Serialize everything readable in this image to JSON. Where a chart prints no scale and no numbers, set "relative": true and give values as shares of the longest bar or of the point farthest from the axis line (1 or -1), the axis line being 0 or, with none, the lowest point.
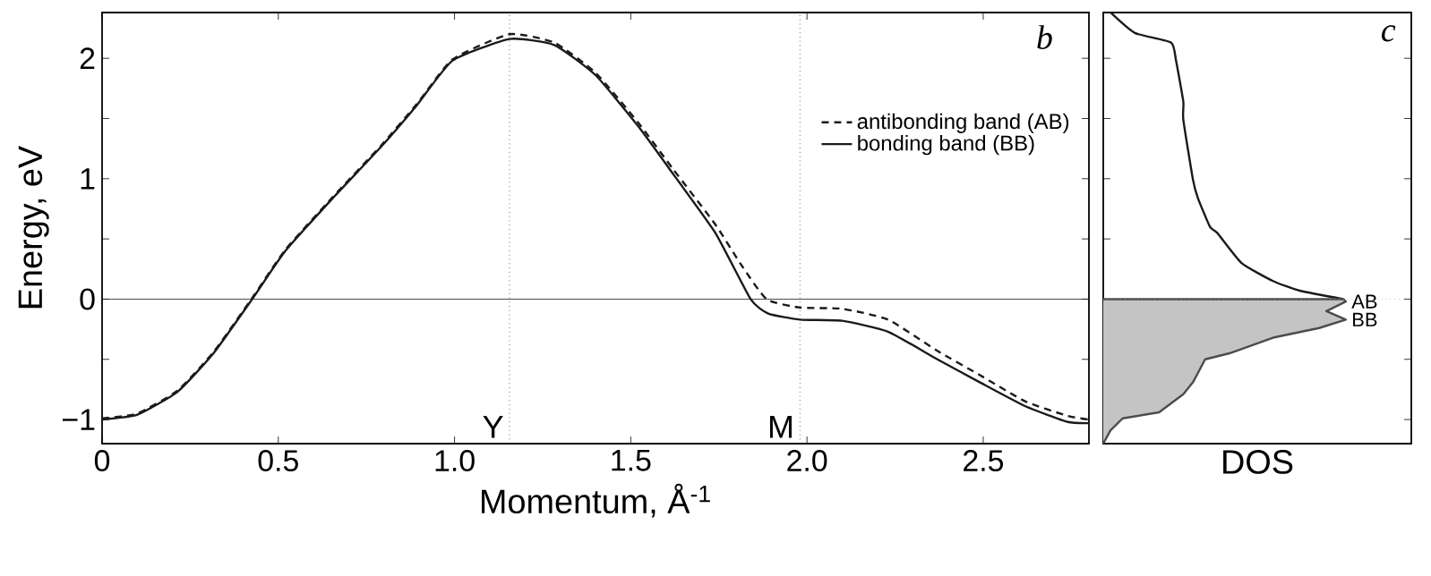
{
  "chart_data": [
    {
      "type": "line",
      "annotations": [
        "b"
      ],
      "xlabel": "Momentum, Å$^{-1}$",
      "ylabel": "Energy, eV",
      "xlim": [
        0,
        2.8
      ],
      "ylim": [
        -1.2,
        2.38
      ],
      "xticks": [
        0,
        0.5,
        {
          "value": 1,
          "label": "1.0"
        },
        1.5,
        {
          "value": 2,
          "label": "2.0"
        },
        2.5
      ],
      "yticks": [
        {
          "value": -1,
          "label": "−1"
        },
        {
          "value": -0.5,
          "label": null
        },
        0,
        {
          "value": 0.5,
          "label": null
        },
        1,
        {
          "value": 1.5,
          "label": null
        },
        2
      ],
      "legend": "right",
      "series": [
        {
          "name": "antibonding band (AB)",
          "color": "#1a1a1a",
          "line_style": "dashed",
          "x": [
            0,
            0.1,
            0.214,
            0.316,
            0.426,
            0.52,
            0.655,
            0.79,
            0.893,
            0.994,
            1.156,
            1.283,
            1.4,
            1.52,
            1.62,
            1.74,
            1.81,
            1.885,
            1.98,
            2.1,
            2.23,
            2.37,
            2.49,
            2.62,
            2.74,
            2.8
          ],
          "values": [
            -0.99,
            -0.95,
            -0.76,
            -0.44,
            0.01,
            0.41,
            0.85,
            1.27,
            1.62,
            1.99,
            2.2,
            2.13,
            1.88,
            1.47,
            1.08,
            0.62,
            0.3,
            0,
            -0.07,
            -0.08,
            -0.17,
            -0.43,
            -0.63,
            -0.85,
            -0.97,
            -1.0
          ]
        },
        {
          "name": "bonding band (BB)",
          "color": "#1a1a1a",
          "line_style": "solid",
          "x": [
            0,
            0.1,
            0.214,
            0.316,
            0.426,
            0.52,
            0.655,
            0.79,
            0.893,
            0.994,
            1.156,
            1.283,
            1.4,
            1.52,
            1.62,
            1.74,
            1.84,
            1.89,
            1.98,
            2.1,
            2.23,
            2.37,
            2.49,
            2.62,
            2.74,
            2.8
          ],
          "values": [
            -1.0,
            -0.96,
            -0.77,
            -0.45,
            0,
            0.4,
            0.84,
            1.26,
            1.61,
            1.98,
            2.16,
            2.11,
            1.86,
            1.44,
            1.04,
            0.55,
            0,
            -0.12,
            -0.17,
            -0.18,
            -0.27,
            -0.5,
            -0.69,
            -0.89,
            -1.02,
            -1.03
          ]
        }
      ],
      "ref_lines": [
        {
          "axis": "y",
          "value": 0,
          "color": "#1a1a1a",
          "line_style": "solid"
        },
        {
          "axis": "x",
          "value": 1.156,
          "label": "Y",
          "color": "#1a1a1a",
          "line_style": "dotted"
        },
        {
          "axis": "x",
          "value": 1.98,
          "label": "M",
          "color": "#1a1a1a",
          "line_style": "dotted"
        }
      ]
    },
    {
      "type": "line",
      "xlabel": "DOS",
      "relative": true,
      "orientation": "horizontal",
      "ylim": [
        -1.2,
        2.38
      ],
      "tick_labels": false,
      "yticks": [
        -1,
        -0.5,
        0,
        0.5,
        1,
        1.5,
        2
      ],
      "series": [
        {
          "color": "#1a1a1a",
          "type": "line",
          "x": [
            2.38,
            2.21,
            2.13,
            1.98,
            1.64,
            1.49,
            0.99,
            0.84,
            0.6,
            0.55,
            0.3,
            0.15,
            0.07,
            0
          ],
          "values": [
            0.03,
            0.13,
            0.28,
            0.3,
            0.33,
            0.33,
            0.37,
            0.39,
            0.44,
            0.47,
            0.57,
            0.7,
            0.81,
            0.99
          ]
        },
        {
          "color": "#c4c4c4",
          "type": "area",
          "x": [
            0,
            -0.02,
            -0.1,
            -0.17,
            -0.24,
            -0.32,
            -0.45,
            -0.5,
            -0.69,
            -0.79,
            -0.94,
            -0.99,
            -1.09,
            -1.2
          ],
          "values": [
            0.99,
            1,
            0.92,
            1,
            0.89,
            0.7,
            0.52,
            0.42,
            0.37,
            0.33,
            0.23,
            0.08,
            0.03,
            0
          ]
        }
      ],
      "ref_lines": [
        {
          "axis": "y",
          "value": 0,
          "color": "#9a9a9a",
          "line_style": "dotted"
        }
      ],
      "annotations": [
        "c",
        {
          "text": "AB",
          "x": 1,
          "y": -0.02
        },
        {
          "text": "BB",
          "x": 1,
          "y": -0.17
        }
      ]
    }
  ]
}
